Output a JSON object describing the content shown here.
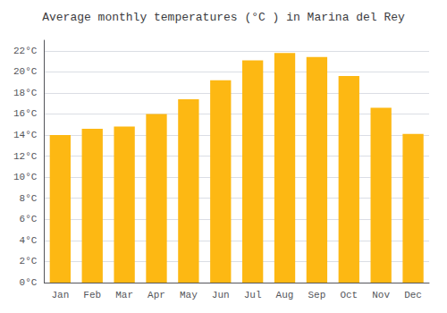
{
  "chart_data": {
    "type": "bar",
    "title": "Average monthly temperatures (°C ) in Marina del Rey",
    "categories": [
      "Jan",
      "Feb",
      "Mar",
      "Apr",
      "May",
      "Jun",
      "Jul",
      "Aug",
      "Sep",
      "Oct",
      "Nov",
      "Dec"
    ],
    "values": [
      14.0,
      14.6,
      14.8,
      16.0,
      17.4,
      19.2,
      21.1,
      21.8,
      21.4,
      19.6,
      16.6,
      14.1
    ],
    "color": "#FDB813",
    "ylim": [
      0,
      23
    ],
    "yticks": [
      {
        "value": 0,
        "label": "0°C"
      },
      {
        "value": 2,
        "label": "2°C"
      },
      {
        "value": 4,
        "label": "4°C"
      },
      {
        "value": 6,
        "label": "6°C"
      },
      {
        "value": 8,
        "label": "8°C"
      },
      {
        "value": 10,
        "label": "10°C"
      },
      {
        "value": 12,
        "label": "12°C"
      },
      {
        "value": 14,
        "label": "14°C"
      },
      {
        "value": 16,
        "label": "16°C"
      },
      {
        "value": 18,
        "label": "18°C"
      },
      {
        "value": 20,
        "label": "20°C"
      },
      {
        "value": 22,
        "label": "22°C"
      }
    ],
    "grid": true
  }
}
